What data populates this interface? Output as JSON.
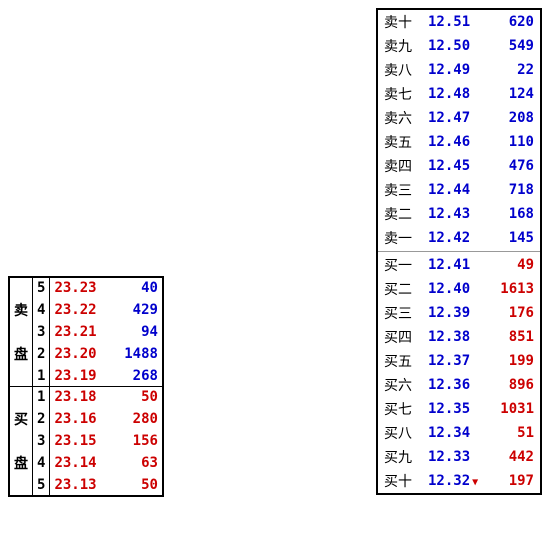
{
  "leftPanel": {
    "sellLabel": "卖盘",
    "buyLabel": "买盘",
    "sellRows": [
      {
        "level": "5",
        "price": "23.23",
        "qty": "40",
        "priceColor": "red",
        "qtyColor": "blue"
      },
      {
        "level": "4",
        "price": "23.22",
        "qty": "429",
        "priceColor": "red",
        "qtyColor": "blue"
      },
      {
        "level": "3",
        "price": "23.21",
        "qty": "94",
        "priceColor": "red",
        "qtyColor": "blue"
      },
      {
        "level": "2",
        "price": "23.20",
        "qty": "1488",
        "priceColor": "red",
        "qtyColor": "blue"
      },
      {
        "level": "1",
        "price": "23.19",
        "qty": "268",
        "priceColor": "red",
        "qtyColor": "blue"
      }
    ],
    "buyRows": [
      {
        "level": "1",
        "price": "23.18",
        "qty": "50",
        "priceColor": "red",
        "qtyColor": "red"
      },
      {
        "level": "2",
        "price": "23.16",
        "qty": "280",
        "priceColor": "red",
        "qtyColor": "red"
      },
      {
        "level": "3",
        "price": "23.15",
        "qty": "156",
        "priceColor": "red",
        "qtyColor": "red"
      },
      {
        "level": "4",
        "price": "23.14",
        "qty": "63",
        "priceColor": "red",
        "qtyColor": "red"
      },
      {
        "level": "5",
        "price": "23.13",
        "qty": "50",
        "priceColor": "red",
        "qtyColor": "red"
      }
    ]
  },
  "rightPanel": {
    "sellRows": [
      {
        "label": "卖十",
        "price": "12.51",
        "qty": "620",
        "qtyColor": "blue"
      },
      {
        "label": "卖九",
        "price": "12.50",
        "qty": "549",
        "qtyColor": "blue"
      },
      {
        "label": "卖八",
        "price": "12.49",
        "qty": "22",
        "qtyColor": "blue"
      },
      {
        "label": "卖七",
        "price": "12.48",
        "qty": "124",
        "qtyColor": "blue"
      },
      {
        "label": "卖六",
        "price": "12.47",
        "qty": "208",
        "qtyColor": "blue"
      },
      {
        "label": "卖五",
        "price": "12.46",
        "qty": "110",
        "qtyColor": "blue"
      },
      {
        "label": "卖四",
        "price": "12.45",
        "qty": "476",
        "qtyColor": "blue"
      },
      {
        "label": "卖三",
        "price": "12.44",
        "qty": "718",
        "qtyColor": "blue"
      },
      {
        "label": "卖二",
        "price": "12.43",
        "qty": "168",
        "qtyColor": "blue"
      },
      {
        "label": "卖一",
        "price": "12.42",
        "qty": "145",
        "qtyColor": "blue"
      }
    ],
    "buyRows": [
      {
        "label": "买一",
        "price": "12.41",
        "qty": "49",
        "qtyColor": "red"
      },
      {
        "label": "买二",
        "price": "12.40",
        "qty": "1613",
        "qtyColor": "red"
      },
      {
        "label": "买三",
        "price": "12.39",
        "qty": "176",
        "qtyColor": "red"
      },
      {
        "label": "买四",
        "price": "12.38",
        "qty": "851",
        "qtyColor": "red"
      },
      {
        "label": "买五",
        "price": "12.37",
        "qty": "199",
        "qtyColor": "red"
      },
      {
        "label": "买六",
        "price": "12.36",
        "qty": "896",
        "qtyColor": "red"
      },
      {
        "label": "买七",
        "price": "12.35",
        "qty": "1031",
        "qtyColor": "red"
      },
      {
        "label": "买八",
        "price": "12.34",
        "qty": "51",
        "qtyColor": "red"
      },
      {
        "label": "买九",
        "price": "12.33",
        "qty": "442",
        "qtyColor": "red"
      },
      {
        "label": "买十",
        "price": "12.32",
        "qty": "197",
        "qtyColor": "red",
        "hasArrow": true
      }
    ]
  },
  "colors": {
    "red": "#cc0000",
    "blue": "#0000cc",
    "black": "#000000",
    "border": "#000000",
    "divider": "#999999",
    "background": "#ffffff"
  }
}
